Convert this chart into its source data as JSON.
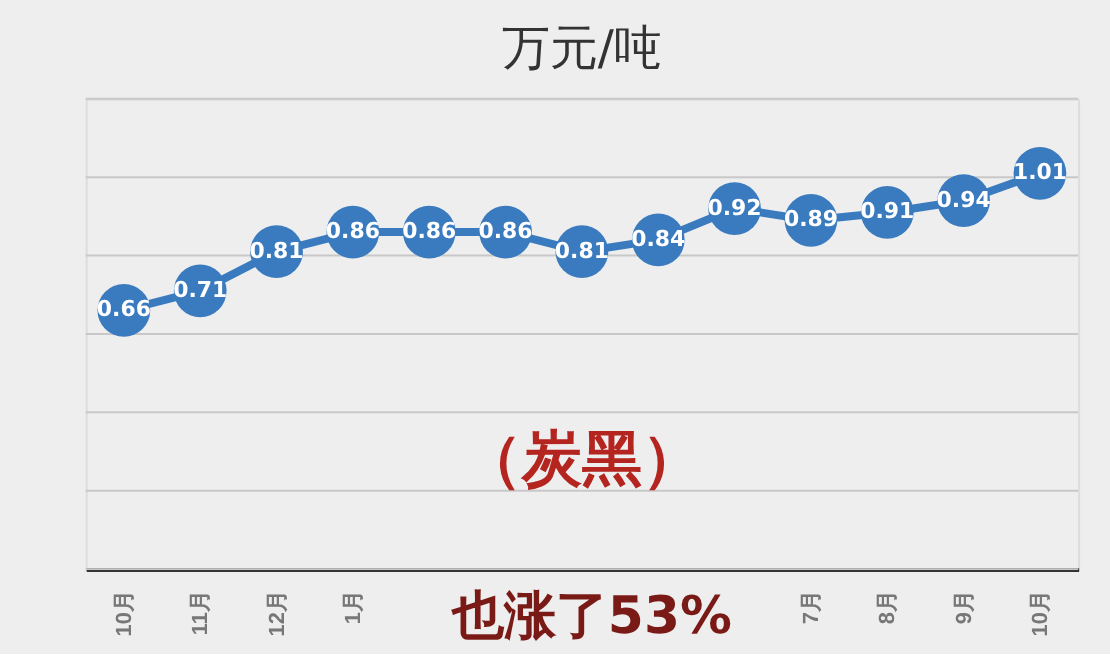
{
  "chart_data": {
    "type": "line",
    "title": "万元/吨",
    "categories": [
      "10月",
      "11月",
      "12月",
      "1月",
      null,
      null,
      null,
      null,
      null,
      "7月",
      "8月",
      "9月",
      "10月"
    ],
    "values": [
      0.66,
      0.71,
      0.81,
      0.86,
      0.86,
      0.86,
      0.81,
      0.84,
      0.92,
      0.89,
      0.91,
      0.94,
      1.01
    ],
    "color": "#3a7bbf",
    "marker": "circle",
    "data_labels": true,
    "ylim": [
      0,
      1.2
    ],
    "yticks": [
      {
        "value": 0,
        "label": null
      },
      {
        "value": 0.2,
        "label": null
      },
      {
        "value": 0.4,
        "label": null
      },
      {
        "value": 0.6,
        "label": null
      },
      {
        "value": 0.8,
        "label": null
      },
      {
        "value": 1.0,
        "label": null
      },
      {
        "value": 1.2,
        "label": null
      }
    ],
    "grid": "y",
    "tick_labels": "x",
    "annotations": [
      "（炭黑）",
      "也涨了53%"
    ]
  }
}
